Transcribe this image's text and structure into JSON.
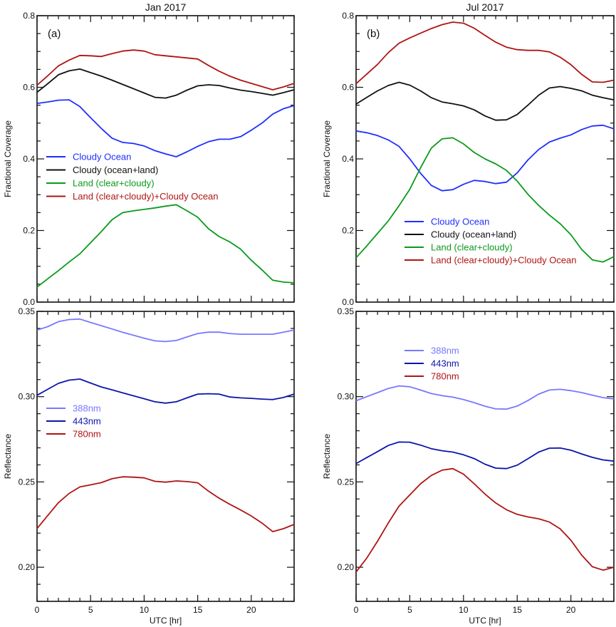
{
  "chart_data": [
    {
      "panel": "jan-coverage",
      "type": "line",
      "title": "Jan 2017",
      "panel_label": "(a)",
      "xlabel": "",
      "ylabel": "Fractional Coverage",
      "xlim": [
        0,
        24
      ],
      "ylim": [
        0,
        0.8
      ],
      "xticks": [
        0,
        5,
        10,
        15,
        20
      ],
      "xtick_labels": [],
      "yticks": [
        0,
        0.2,
        0.4,
        0.6,
        0.8
      ],
      "ytick_labels": [
        "0.0",
        "0.2",
        "0.4",
        "0.6",
        "0.8"
      ],
      "legend": "left-middle",
      "x": [
        0,
        1,
        2,
        3,
        4,
        5,
        6,
        7,
        8,
        9,
        10,
        11,
        12,
        13,
        14,
        15,
        16,
        17,
        18,
        19,
        20,
        21,
        22,
        23,
        24
      ],
      "series": [
        {
          "name": "Cloudy Ocean",
          "color": "#1f2fff",
          "values": [
            0.555,
            0.559,
            0.564,
            0.565,
            0.546,
            0.515,
            0.485,
            0.458,
            0.446,
            0.443,
            0.436,
            0.423,
            0.414,
            0.406,
            0.42,
            0.435,
            0.448,
            0.455,
            0.455,
            0.462,
            0.48,
            0.5,
            0.525,
            0.54,
            0.549
          ]
        },
        {
          "name": "Cloudy (ocean+land)",
          "color": "#111111",
          "values": [
            0.586,
            0.61,
            0.635,
            0.646,
            0.651,
            0.641,
            0.631,
            0.62,
            0.608,
            0.596,
            0.584,
            0.572,
            0.57,
            0.578,
            0.592,
            0.604,
            0.607,
            0.605,
            0.598,
            0.592,
            0.588,
            0.583,
            0.578,
            0.585,
            0.593
          ]
        },
        {
          "name": "Land (clear+cloudy)",
          "color": "#0c9a1c",
          "values": [
            0.042,
            0.065,
            0.088,
            0.112,
            0.135,
            0.166,
            0.197,
            0.23,
            0.25,
            0.255,
            0.259,
            0.263,
            0.268,
            0.272,
            0.255,
            0.237,
            0.205,
            0.183,
            0.168,
            0.148,
            0.117,
            0.09,
            0.061,
            0.056,
            0.054
          ]
        },
        {
          "name": "Land (clear+cloudy)+Cloudy Ocean",
          "color": "#b01414",
          "values": [
            0.606,
            0.632,
            0.66,
            0.676,
            0.689,
            0.688,
            0.686,
            0.694,
            0.701,
            0.704,
            0.701,
            0.691,
            0.688,
            0.685,
            0.682,
            0.679,
            0.661,
            0.645,
            0.631,
            0.62,
            0.611,
            0.602,
            0.593,
            0.601,
            0.611
          ]
        }
      ]
    },
    {
      "panel": "jul-coverage",
      "type": "line",
      "title": "Jul 2017",
      "panel_label": "(b)",
      "xlabel": "",
      "ylabel": "Fractional Coverage",
      "xlim": [
        0,
        24
      ],
      "ylim": [
        0,
        0.8
      ],
      "xticks": [
        0,
        5,
        10,
        15,
        20
      ],
      "xtick_labels": [],
      "yticks": [
        0,
        0.2,
        0.4,
        0.6,
        0.8
      ],
      "ytick_labels": [
        "0.0",
        "0.2",
        "0.4",
        "0.6",
        "0.8"
      ],
      "legend": "lower-middle",
      "x": [
        0,
        1,
        2,
        3,
        4,
        5,
        6,
        7,
        8,
        9,
        10,
        11,
        12,
        13,
        14,
        15,
        16,
        17,
        18,
        19,
        20,
        21,
        22,
        23,
        24
      ],
      "series": [
        {
          "name": "Cloudy Ocean",
          "color": "#1f2fff",
          "values": [
            0.478,
            0.473,
            0.465,
            0.453,
            0.435,
            0.4,
            0.36,
            0.326,
            0.311,
            0.314,
            0.329,
            0.34,
            0.337,
            0.331,
            0.335,
            0.361,
            0.397,
            0.426,
            0.447,
            0.458,
            0.467,
            0.482,
            0.492,
            0.494,
            0.484
          ]
        },
        {
          "name": "Cloudy (ocean+land)",
          "color": "#111111",
          "values": [
            0.553,
            0.572,
            0.59,
            0.605,
            0.614,
            0.606,
            0.59,
            0.571,
            0.559,
            0.554,
            0.548,
            0.537,
            0.52,
            0.508,
            0.509,
            0.524,
            0.55,
            0.578,
            0.598,
            0.602,
            0.597,
            0.59,
            0.578,
            0.571,
            0.565
          ]
        },
        {
          "name": "Land (clear+cloudy)",
          "color": "#0c9a1c",
          "values": [
            0.124,
            0.157,
            0.192,
            0.227,
            0.269,
            0.315,
            0.375,
            0.43,
            0.456,
            0.459,
            0.442,
            0.418,
            0.4,
            0.386,
            0.368,
            0.338,
            0.301,
            0.27,
            0.243,
            0.219,
            0.188,
            0.147,
            0.118,
            0.112,
            0.127
          ]
        },
        {
          "name": "Land (clear+cloudy)+Cloudy Ocean",
          "color": "#b01414",
          "values": [
            0.61,
            0.637,
            0.664,
            0.697,
            0.723,
            0.738,
            0.751,
            0.764,
            0.775,
            0.782,
            0.779,
            0.765,
            0.745,
            0.726,
            0.712,
            0.705,
            0.703,
            0.703,
            0.699,
            0.684,
            0.663,
            0.636,
            0.615,
            0.614,
            0.62
          ]
        }
      ]
    },
    {
      "panel": "jan-reflectance",
      "type": "line",
      "title": "",
      "panel_label": "",
      "xlabel": "UTC [hr]",
      "ylabel": "Reflectance",
      "xlim": [
        0,
        24
      ],
      "ylim": [
        0.18,
        0.35
      ],
      "xticks": [
        0,
        5,
        10,
        15,
        20
      ],
      "xtick_labels": [
        "0",
        "5",
        "10",
        "15",
        "20"
      ],
      "yticks": [
        0.2,
        0.25,
        0.3,
        0.35
      ],
      "ytick_labels": [
        "0.20",
        "0.25",
        "0.30",
        "0.35"
      ],
      "legend": "left-middle",
      "x": [
        0,
        1,
        2,
        3,
        4,
        5,
        6,
        7,
        8,
        9,
        10,
        11,
        12,
        13,
        14,
        15,
        16,
        17,
        18,
        19,
        20,
        21,
        22,
        23,
        24
      ],
      "series": [
        {
          "name": "388nm",
          "color": "#7878ff",
          "values": [
            0.339,
            0.341,
            0.344,
            0.3452,
            0.3455,
            0.3435,
            0.3416,
            0.3397,
            0.3377,
            0.336,
            0.3343,
            0.3327,
            0.3323,
            0.3329,
            0.335,
            0.337,
            0.3378,
            0.3378,
            0.337,
            0.3366,
            0.3366,
            0.3366,
            0.3366,
            0.3378,
            0.339
          ]
        },
        {
          "name": "443nm",
          "color": "#0c14aa",
          "values": [
            0.3008,
            0.3043,
            0.3078,
            0.3097,
            0.3103,
            0.308,
            0.3057,
            0.304,
            0.3022,
            0.3005,
            0.2988,
            0.297,
            0.2962,
            0.297,
            0.2993,
            0.3015,
            0.3017,
            0.3015,
            0.2998,
            0.2993,
            0.299,
            0.2986,
            0.2983,
            0.2995,
            0.3015
          ]
        },
        {
          "name": "780nm",
          "color": "#b01414",
          "values": [
            0.2227,
            0.2303,
            0.2379,
            0.2433,
            0.2471,
            0.2483,
            0.2496,
            0.2519,
            0.253,
            0.2528,
            0.2524,
            0.2504,
            0.2499,
            0.2506,
            0.2502,
            0.2495,
            0.2446,
            0.2405,
            0.2369,
            0.2336,
            0.2301,
            0.2259,
            0.2209,
            0.2226,
            0.2251
          ]
        }
      ]
    },
    {
      "panel": "jul-reflectance",
      "type": "line",
      "title": "",
      "panel_label": "",
      "xlabel": "UTC [hr]",
      "ylabel": "Reflectance",
      "xlim": [
        0,
        24
      ],
      "ylim": [
        0.18,
        0.35
      ],
      "xticks": [
        0,
        5,
        10,
        15,
        20
      ],
      "xtick_labels": [
        "0",
        "5",
        "10",
        "15",
        "20"
      ],
      "yticks": [
        0.2,
        0.25,
        0.3,
        0.35
      ],
      "ytick_labels": [
        "0.20",
        "0.25",
        "0.30",
        "0.35"
      ],
      "legend": "upper-left",
      "x": [
        0,
        1,
        2,
        3,
        4,
        5,
        6,
        7,
        8,
        9,
        10,
        11,
        12,
        13,
        14,
        15,
        16,
        17,
        18,
        19,
        20,
        21,
        22,
        23,
        24
      ],
      "series": [
        {
          "name": "388nm",
          "color": "#7878ff",
          "values": [
            0.2976,
            0.3,
            0.3024,
            0.3048,
            0.3063,
            0.3058,
            0.3039,
            0.3018,
            0.3006,
            0.2997,
            0.2983,
            0.2965,
            0.2944,
            0.2928,
            0.2927,
            0.2945,
            0.2977,
            0.3015,
            0.3039,
            0.3043,
            0.3035,
            0.3024,
            0.3009,
            0.2994,
            0.2987
          ]
        },
        {
          "name": "443nm",
          "color": "#0c14aa",
          "values": [
            0.2608,
            0.2643,
            0.2678,
            0.2714,
            0.2734,
            0.2733,
            0.2716,
            0.2695,
            0.2683,
            0.2675,
            0.2659,
            0.2637,
            0.2604,
            0.2581,
            0.2578,
            0.2598,
            0.2636,
            0.2675,
            0.2698,
            0.2699,
            0.2686,
            0.2664,
            0.2644,
            0.2629,
            0.2622
          ]
        },
        {
          "name": "780nm",
          "color": "#b01414",
          "values": [
            0.1972,
            0.2054,
            0.2153,
            0.226,
            0.2358,
            0.2424,
            0.2489,
            0.2538,
            0.2569,
            0.2578,
            0.2546,
            0.2489,
            0.2429,
            0.2377,
            0.2337,
            0.231,
            0.2295,
            0.2284,
            0.2265,
            0.2225,
            0.2158,
            0.2071,
            0.2003,
            0.1983,
            0.2
          ]
        }
      ]
    }
  ]
}
